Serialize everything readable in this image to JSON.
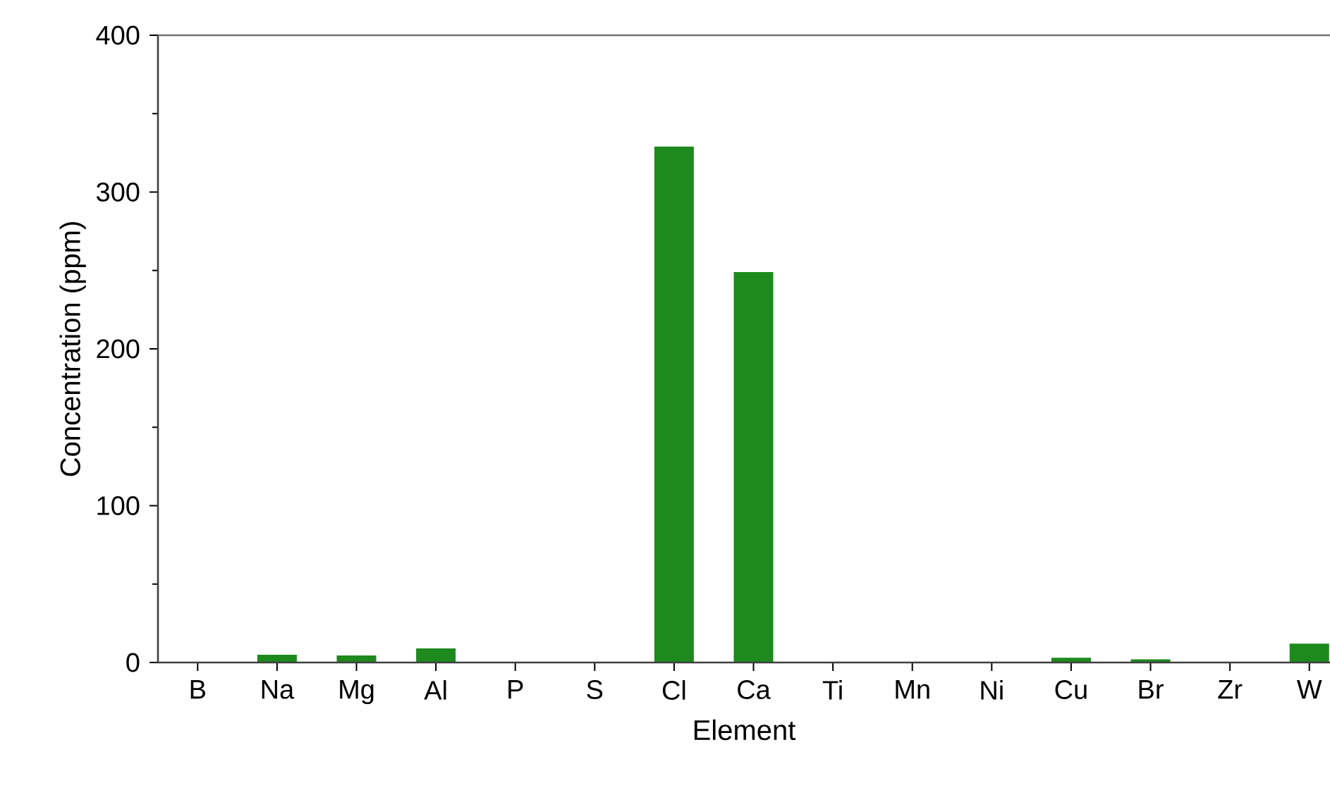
{
  "chart_data": {
    "type": "bar",
    "xlabel": "Element",
    "ylabel": "Concentration (ppm)",
    "categories": [
      "B",
      "Na",
      "Mg",
      "Al",
      "P",
      "S",
      "Cl",
      "Ca",
      "Ti",
      "Mn",
      "Ni",
      "Cu",
      "Br",
      "Zr",
      "W"
    ],
    "values": [
      0,
      5,
      4.5,
      9,
      0,
      0,
      329,
      249,
      0,
      0,
      0,
      3,
      2,
      0,
      12
    ],
    "color": "#1e8a1e",
    "ylim": [
      0,
      400
    ],
    "yticks": [
      0,
      100,
      200,
      300,
      400
    ]
  }
}
